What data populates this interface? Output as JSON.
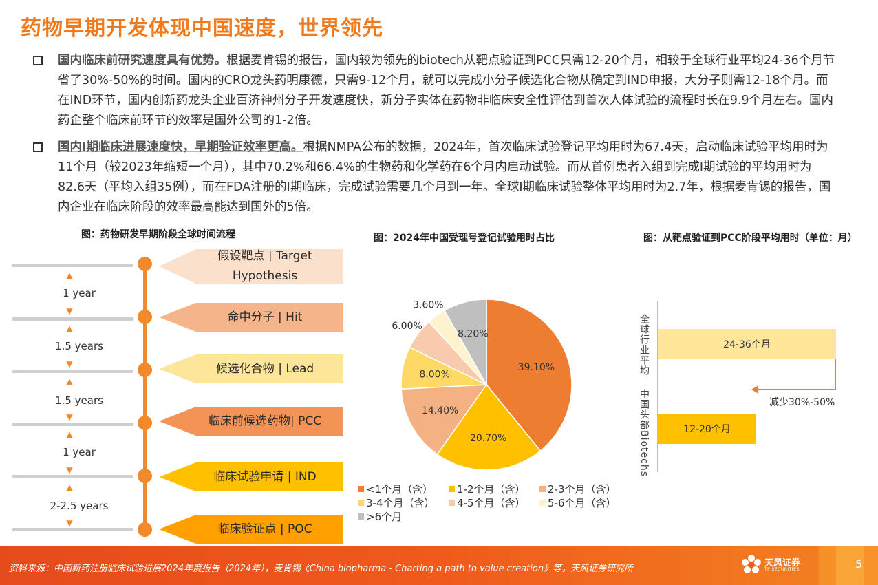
{
  "page": {
    "title": "药物早期开发体现中国速度，世界领先",
    "page_number": "5"
  },
  "bullets": [
    {
      "lead": "国内临床前研究速度具有优势。",
      "text": "根据麦肯锡的报告，国内较为领先的biotech从靶点验证到PCC只需12-20个月，相较于全球行业平均24-36个月节省了30%-50%的时间。国内的CRO龙头药明康德，只需9-12个月，就可以完成小分子候选化合物从确定到IND申报，大分子则需12-18个月。而在IND环节，国内创新药龙头企业百济神州分子开发速度快，新分子实体在药物非临床安全性评估到首次人体试验的流程时长在9.9个月左右。国内药企整个临床前环节的效率是国外公司的1-2倍。"
    },
    {
      "lead": "国内I期临床进展速度快，早期验证效率更高。",
      "text": "根据NMPA公布的数据，2024年，首次临床试验登记平均用时为67.4天，启动临床试验平均用时为11个月（较2023年缩短一个月），其中70.2%和66.4%的生物药和化学药在6个月内启动试验。而从首例患者入组到完成I期试验的平均用时为82.6天（平均入组35例），而在FDA注册的I期临床，完成试验需要几个月到一年。全球I期临床试验整体平均用时为2.7年，根据麦肯锡的报告，国内企业在临床阶段的效率最高能达到国外的5倍。"
    }
  ],
  "flow": {
    "title": "图：药物研发早期阶段全球时间流程",
    "stages": [
      {
        "label": "假设靶点 | Target Hypothesis",
        "color": "#FBE0CB"
      },
      {
        "label": "命中分子 | Hit",
        "color": "#F6B48B"
      },
      {
        "label": "候选化合物 | Lead",
        "color": "#FDE59A"
      },
      {
        "label": "临床前候选药物| PCC",
        "color": "#F39456"
      },
      {
        "label": "临床试验申请 | IND",
        "color": "#FFC000"
      },
      {
        "label": "临床验证点 | POC",
        "color": "#FF9F00"
      }
    ],
    "durations": [
      "1 year",
      "1.5 years",
      "1.5 years",
      "1 year",
      "2-2.5 years"
    ]
  },
  "pie": {
    "title": "图：2024年中国受理号登记试验用时占比",
    "labels": [
      "39.10%",
      "20.70%",
      "14.40%",
      "8.00%",
      "6.00%",
      "3.60%",
      "8.20%"
    ],
    "legend": [
      "<1个月（含）",
      "1-2个月（含）",
      "2-3个月（含）",
      "3-4个月（含）",
      "4-5个月（含）",
      "5-6个月（含）",
      ">6个月"
    ]
  },
  "bars": {
    "title": "图：从靶点验证到PCC阶段平均用时（单位：月）",
    "annotation": "减少30%-50%"
  },
  "chart_data": [
    {
      "type": "pie",
      "title": "图：2024年中国受理号登记试验用时占比",
      "categories": [
        "<1个月（含）",
        "1-2个月（含）",
        "2-3个月（含）",
        "3-4个月（含）",
        "4-5个月（含）",
        "5-6个月（含）",
        ">6个月"
      ],
      "values": [
        39.1,
        20.7,
        14.4,
        8.0,
        6.0,
        3.6,
        8.2
      ],
      "colors": [
        "#ED7D31",
        "#FFC000",
        "#F4B183",
        "#FFD966",
        "#F8CBAD",
        "#FFF2CC",
        "#BFBFBF"
      ],
      "legend": "bottom"
    },
    {
      "type": "bar",
      "orientation": "horizontal",
      "title": "图：从靶点验证到PCC阶段平均用时（单位：月）",
      "categories": [
        "全球行业平均",
        "中国头部Biotechs"
      ],
      "value_labels": [
        "24-36个月",
        "12-20个月"
      ],
      "ranges": [
        [
          24,
          36
        ],
        [
          12,
          20
        ]
      ],
      "colors": [
        "#FFE699",
        "#FFC000"
      ]
    }
  ],
  "footer": {
    "source": "资料来源：中国新药注册临床试验进展2024年度报告（2024年），麦肯锡《China biopharma - Charting a path to value creation》等，天风证券研究所",
    "logo_text": "天风证券",
    "logo_sub": "TF SECURITIES"
  }
}
